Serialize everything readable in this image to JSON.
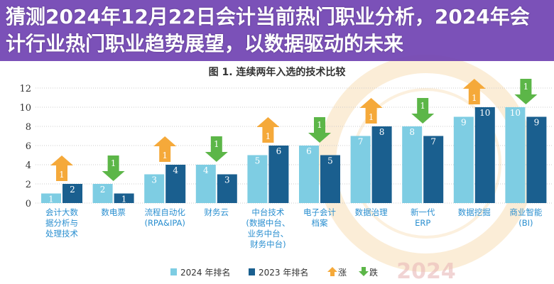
{
  "headline": "猜测2024年12月22日会计当前热门职业分析，2024年会计行业热门职业趋势展望，以数据驱动的未来",
  "watermark": "2024",
  "chart_data": {
    "type": "bar",
    "title": "图 1. 连续两年入选的技术比较",
    "categories": [
      [
        "会计大数",
        "据分析与",
        "处理技术"
      ],
      [
        "数电票"
      ],
      [
        "流程自动化",
        "(RPA&IPA)"
      ],
      [
        "财务云"
      ],
      [
        "中台技术",
        "(数据中台、",
        "业务中台、",
        "财务中台)"
      ],
      [
        "电子会计",
        "档案"
      ],
      [
        "数据治理"
      ],
      [
        "新一代",
        "ERP"
      ],
      [
        "数据挖掘"
      ],
      [
        "商业智能",
        "(BI)"
      ]
    ],
    "series": [
      {
        "name": "2024 年排名",
        "values": [
          1,
          2,
          3,
          4,
          5,
          6,
          7,
          8,
          9,
          10
        ],
        "color": "#7ecde3"
      },
      {
        "name": "2023 年排名",
        "values": [
          2,
          1,
          4,
          3,
          6,
          5,
          8,
          7,
          10,
          9
        ],
        "color": "#1a5f8f"
      }
    ],
    "changes": [
      {
        "direction": "up",
        "value": 1
      },
      {
        "direction": "down",
        "value": 1
      },
      {
        "direction": "up",
        "value": 1
      },
      {
        "direction": "down",
        "value": 1
      },
      {
        "direction": "up",
        "value": 1
      },
      {
        "direction": "down",
        "value": 1
      },
      {
        "direction": "up",
        "value": 1
      },
      {
        "direction": "down",
        "value": 1
      },
      {
        "direction": "up",
        "value": 1
      },
      {
        "direction": "down",
        "value": 1
      }
    ],
    "legend": [
      {
        "label": "2024 年排名",
        "kind": "box",
        "color": "#7ecde3"
      },
      {
        "label": "2023 年排名",
        "kind": "box",
        "color": "#1a5f8f"
      },
      {
        "label": "涨",
        "kind": "up-arrow",
        "color": "#f5a93a"
      },
      {
        "label": "跌",
        "kind": "down-arrow",
        "color": "#5cb648"
      }
    ],
    "legend_position": "bottom",
    "ylim": [
      0,
      12
    ],
    "yticks": [
      0,
      2,
      4,
      6,
      8,
      10,
      12
    ],
    "grid": true,
    "up_color": "#f5a93a",
    "down_color": "#5cb648",
    "label_color": "#2a8fd0"
  }
}
